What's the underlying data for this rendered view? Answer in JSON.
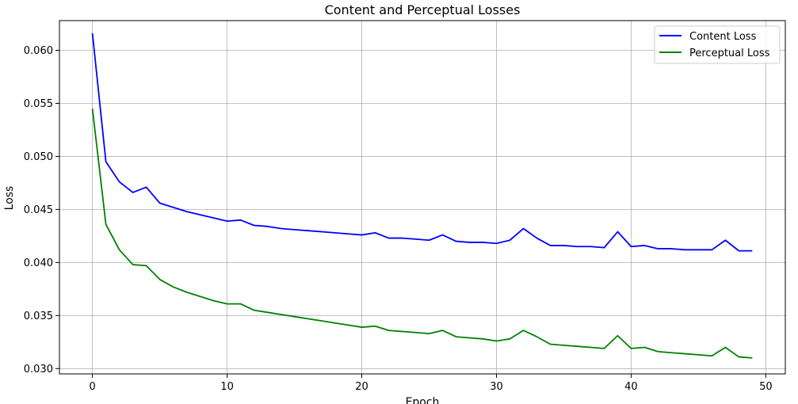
{
  "chart_data": {
    "type": "line",
    "title": "Content and Perceptual Losses",
    "xlabel": "Epoch",
    "ylabel": "Loss",
    "xlim": [
      -2.45,
      51.45
    ],
    "ylim": [
      0.0295,
      0.0628
    ],
    "xticks": [
      "0",
      "10",
      "20",
      "30",
      "40",
      "50"
    ],
    "yticks": [
      "0.030",
      "0.035",
      "0.040",
      "0.045",
      "0.050",
      "0.055",
      "0.060"
    ],
    "grid": true,
    "legend_position": "top-right",
    "x": [
      0,
      1,
      2,
      3,
      4,
      5,
      6,
      7,
      8,
      9,
      10,
      11,
      12,
      13,
      14,
      15,
      16,
      17,
      18,
      19,
      20,
      21,
      22,
      23,
      24,
      25,
      26,
      27,
      28,
      29,
      30,
      31,
      32,
      33,
      34,
      35,
      36,
      37,
      38,
      39,
      40,
      41,
      42,
      43,
      44,
      45,
      46,
      47,
      48,
      49
    ],
    "series": [
      {
        "name": "Content Loss",
        "color": "#0000ff",
        "values": [
          0.0616,
          0.0495,
          0.0476,
          0.0466,
          0.0471,
          0.0456,
          0.0452,
          0.0448,
          0.0445,
          0.0442,
          0.0439,
          0.044,
          0.0435,
          0.0434,
          0.0432,
          0.0431,
          0.043,
          0.0429,
          0.0428,
          0.0427,
          0.0426,
          0.0428,
          0.0423,
          0.0423,
          0.0422,
          0.0421,
          0.0426,
          0.042,
          0.0419,
          0.0419,
          0.0418,
          0.0421,
          0.0432,
          0.0423,
          0.0416,
          0.0416,
          0.0415,
          0.0415,
          0.0414,
          0.0429,
          0.0415,
          0.0416,
          0.0413,
          0.0413,
          0.0412,
          0.0412,
          0.0412,
          0.0421,
          0.0411,
          0.0411
        ]
      },
      {
        "name": "Perceptual Loss",
        "color": "#008000",
        "values": [
          0.0545,
          0.0436,
          0.0412,
          0.0398,
          0.0397,
          0.0384,
          0.0377,
          0.0372,
          0.0368,
          0.0364,
          0.0361,
          0.0361,
          0.0355,
          0.0353,
          0.0351,
          0.0349,
          0.0347,
          0.0345,
          0.0343,
          0.0341,
          0.0339,
          0.034,
          0.0336,
          0.0335,
          0.0334,
          0.0333,
          0.0336,
          0.033,
          0.0329,
          0.0328,
          0.0326,
          0.0328,
          0.0336,
          0.033,
          0.0323,
          0.0322,
          0.0321,
          0.032,
          0.0319,
          0.0331,
          0.0319,
          0.032,
          0.0316,
          0.0315,
          0.0314,
          0.0313,
          0.0312,
          0.032,
          0.0311,
          0.031
        ]
      }
    ]
  }
}
